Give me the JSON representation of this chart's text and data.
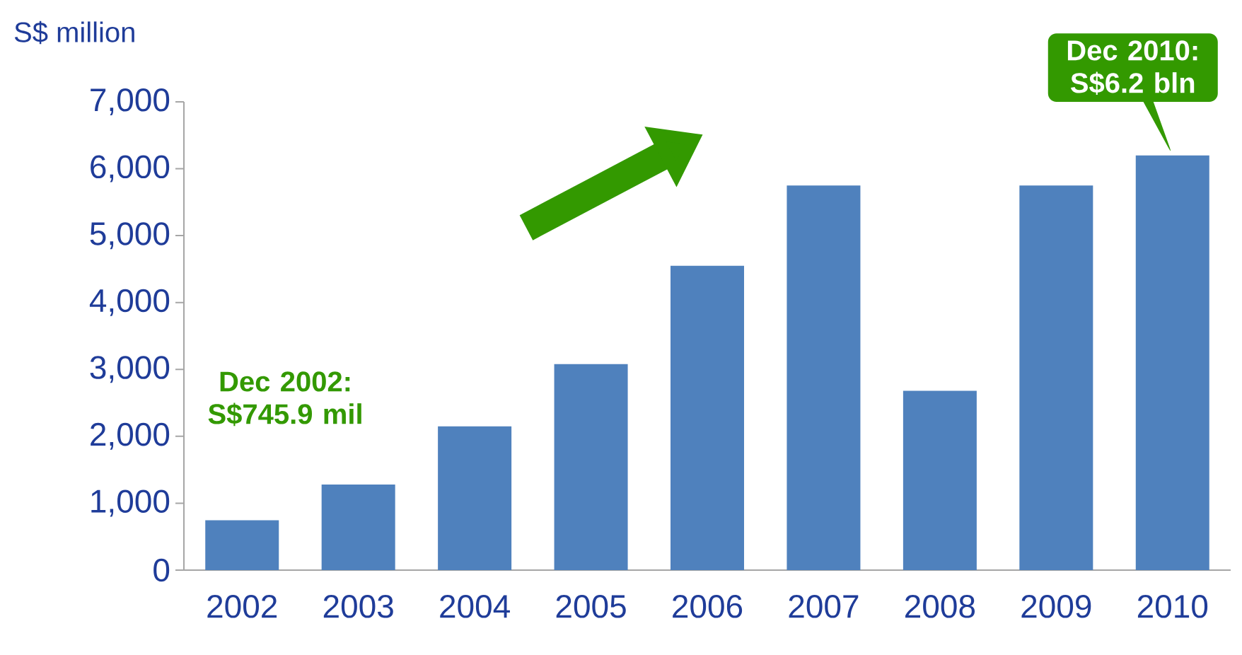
{
  "chart_data": {
    "type": "bar",
    "ylabel": "S$ million",
    "categories": [
      "2002",
      "2003",
      "2004",
      "2005",
      "2006",
      "2007",
      "2008",
      "2009",
      "2010"
    ],
    "values": [
      745.9,
      1280,
      2150,
      3080,
      4550,
      5750,
      2680,
      5750,
      6200
    ],
    "color": "#4f81bd",
    "ylim": [
      0,
      7000
    ],
    "yticks": [
      {
        "value": 0,
        "label": "0"
      },
      {
        "value": 1000,
        "label": "1,000"
      },
      {
        "value": 2000,
        "label": "2,000"
      },
      {
        "value": 3000,
        "label": "3,000"
      },
      {
        "value": 4000,
        "label": "4,000"
      },
      {
        "value": 5000,
        "label": "5,000"
      },
      {
        "value": 6000,
        "label": "6,000"
      },
      {
        "value": 7000,
        "label": "7,000"
      }
    ],
    "grid": false,
    "annotations": [
      "Dec 2002: S$745.9 mil",
      {
        "text": "Dec 2010: S$6.2 bln",
        "x": "2010",
        "y": 6200
      }
    ]
  }
}
